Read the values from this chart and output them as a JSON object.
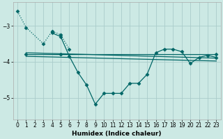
{
  "background_color": "#cce9e4",
  "grid_color": "#aaccca",
  "line_color": "#006666",
  "xlabel": "Humidex (Indice chaleur)",
  "xlim": [
    -0.5,
    23.5
  ],
  "ylim": [
    -5.6,
    -2.35
  ],
  "yticks": [
    -5,
    -4,
    -3
  ],
  "xticks": [
    0,
    1,
    2,
    3,
    4,
    5,
    6,
    7,
    8,
    9,
    10,
    11,
    12,
    13,
    14,
    15,
    16,
    17,
    18,
    19,
    20,
    21,
    22,
    23
  ],
  "series": [
    {
      "x": [
        0,
        1,
        3,
        4,
        5,
        6
      ],
      "y": [
        -2.6,
        -3.05,
        -3.5,
        -3.15,
        -3.25,
        -3.65
      ],
      "marker": "D",
      "markersize": 2.5,
      "linestyle": "dotted",
      "lw": 0.9
    },
    {
      "x": [
        1,
        23
      ],
      "y": [
        -3.75,
        -3.9
      ],
      "marker": null,
      "markersize": 0,
      "linestyle": "solid",
      "lw": 0.9
    },
    {
      "x": [
        1,
        23
      ],
      "y": [
        -3.85,
        -3.98
      ],
      "marker": null,
      "markersize": 0,
      "linestyle": "solid",
      "lw": 0.9
    },
    {
      "x": [
        1,
        5,
        23
      ],
      "y": [
        -3.8,
        -3.8,
        -3.8
      ],
      "marker": "D",
      "markersize": 2.5,
      "linestyle": "solid",
      "lw": 0.9
    },
    {
      "x": [
        4,
        5,
        6,
        7,
        8,
        9,
        10,
        11,
        12,
        13,
        14,
        15,
        16,
        17,
        18,
        19,
        20,
        21,
        22,
        23
      ],
      "y": [
        -3.2,
        -3.3,
        -3.85,
        -4.3,
        -4.65,
        -5.18,
        -4.88,
        -4.88,
        -4.88,
        -4.6,
        -4.6,
        -4.35,
        -3.75,
        -3.65,
        -3.65,
        -3.72,
        -4.05,
        -3.88,
        -3.82,
        -3.88
      ],
      "marker": "D",
      "markersize": 2.5,
      "linestyle": "solid",
      "lw": 0.9
    }
  ]
}
